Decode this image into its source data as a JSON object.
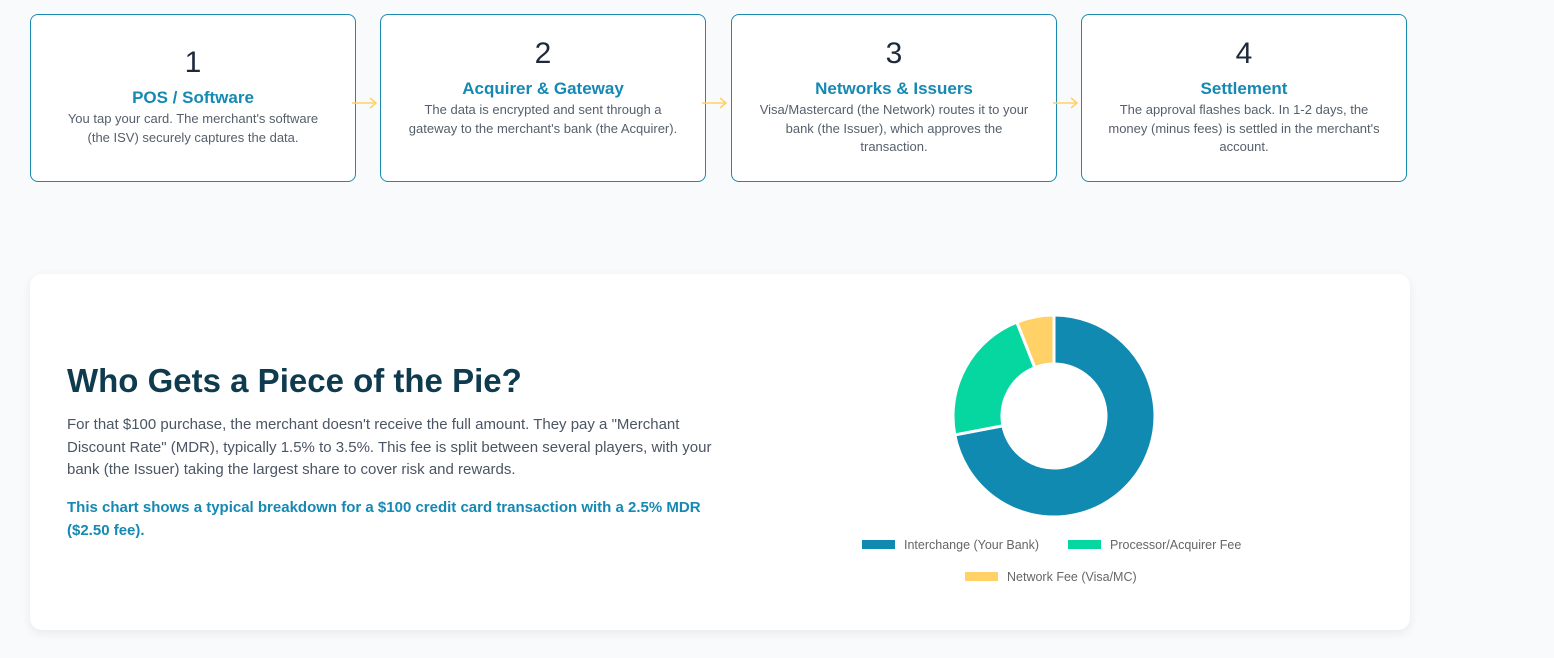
{
  "process_steps": [
    {
      "number": "1",
      "title": "POS / Software",
      "description": "You tap your card. The merchant's software (the ISV) securely captures the data."
    },
    {
      "number": "2",
      "title": "Acquirer & Gateway",
      "description": "The data is encrypted and sent through a gateway to the merchant's bank (the Acquirer)."
    },
    {
      "number": "3",
      "title": "Networks & Issuers",
      "description": "Visa/Mastercard (the Network) routes it to your bank (the Issuer), which approves the transaction."
    },
    {
      "number": "4",
      "title": "Settlement",
      "description": "The approval flashes back. In 1-2 days, the money (minus fees) is settled in the merchant's account."
    }
  ],
  "pie_section": {
    "title": "Who Gets a Piece of the Pie?",
    "body": "For that $100 purchase, the merchant doesn't receive the full amount. They pay a \"Merchant Discount Rate\" (MDR), typically 1.5% to 3.5%. This fee is split between several players, with your bank (the Issuer) taking the largest share to cover risk and rewards.",
    "note": "This chart shows a typical breakdown for a $100 credit card transaction with a 2.5% MDR ($2.50 fee)."
  },
  "chart_data": {
    "type": "pie",
    "variant": "doughnut",
    "title": "",
    "categories": [
      "Interchange (Your Bank)",
      "Processor/Acquirer Fee",
      "Network Fee (Visa/MC)"
    ],
    "values": [
      1.8,
      0.55,
      0.15
    ],
    "colors": [
      "#118ab2",
      "#06d6a0",
      "#ffd166"
    ],
    "legend": "bottom"
  },
  "colors": {
    "accent": "#1589b3",
    "heading": "#0f3b4e",
    "arrow": "#ffd166",
    "background": "#f8fafc"
  }
}
